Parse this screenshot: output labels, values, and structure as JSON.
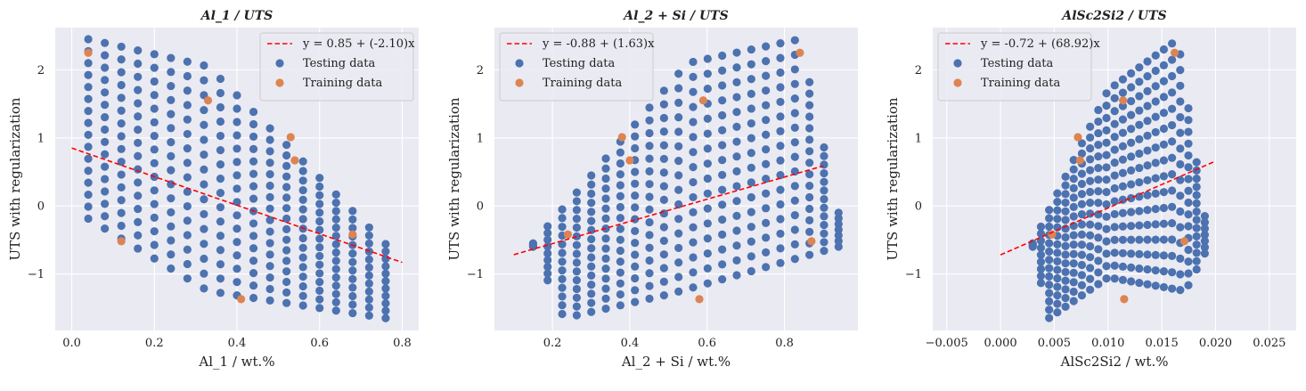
{
  "colors": {
    "background": "#eaeaf2",
    "grid": "#ffffff",
    "testing": "#4c72b0",
    "training": "#dd8452",
    "fit": "#ff0000"
  },
  "chart_data": [
    {
      "type": "scatter",
      "title": "Al_1 / UTS",
      "xlabel": "Al_1 / wt.%",
      "ylabel": "UTS with regularization",
      "xlim": [
        -0.04,
        0.84
      ],
      "ylim": [
        -1.83,
        2.62
      ],
      "xticks": [
        0.0,
        0.2,
        0.4,
        0.6,
        0.8
      ],
      "xtick_labels": [
        "0.0",
        "0.2",
        "0.4",
        "0.6",
        "0.8"
      ],
      "yticks": [
        -1,
        0,
        1,
        2
      ],
      "ytick_labels": [
        "−1",
        "0",
        "1",
        "2"
      ],
      "grid": true,
      "legend_position": "top-right",
      "legend": [
        "y = 0.85 + (-2.10)x",
        "Testing data",
        "Training data"
      ],
      "fit_line": {
        "intercept": 0.85,
        "slope": -2.1,
        "x_range": [
          0.0,
          0.8
        ]
      },
      "testing_cloud": {
        "x_range": [
          0.04,
          0.76
        ],
        "columns": 19,
        "upper": [
          [
            0.04,
            2.45
          ],
          [
            0.33,
            2.05
          ],
          [
            0.76,
            -0.56
          ]
        ],
        "lower": [
          [
            0.03,
            -0.15
          ],
          [
            0.33,
            -1.25
          ],
          [
            0.76,
            -1.65
          ]
        ],
        "rows": 16
      },
      "training": {
        "x": [
          0.04,
          0.12,
          0.33,
          0.41,
          0.53,
          0.54,
          0.68
        ],
        "y": [
          2.25,
          -0.52,
          1.55,
          -1.37,
          1.01,
          0.67,
          -0.42
        ]
      }
    },
    {
      "type": "scatter",
      "title": "Al_2 + Si / UTS",
      "xlabel": "Al_2 + Si / wt.%",
      "ylabel": "UTS with regularization",
      "xlim": [
        0.05,
        0.99
      ],
      "ylim": [
        -1.83,
        2.62
      ],
      "xticks": [
        0.2,
        0.4,
        0.6,
        0.8
      ],
      "xtick_labels": [
        "0.2",
        "0.4",
        "0.6",
        "0.8"
      ],
      "yticks": [
        -1,
        0,
        1,
        2
      ],
      "ytick_labels": [
        "−1",
        "0",
        "1",
        "2"
      ],
      "grid": true,
      "legend_position": "top-left",
      "legend": [
        "y = -0.88 + (1.63)x",
        "Testing data",
        "Training data"
      ],
      "fit_line": {
        "intercept": -0.88,
        "slope": 1.63,
        "x_range": [
          0.1,
          0.9
        ]
      },
      "testing_cloud": {
        "x_range": [
          0.15,
          0.94
        ],
        "columns": 22,
        "upper": [
          [
            0.15,
            -0.55
          ],
          [
            0.55,
            2.1
          ],
          [
            0.84,
            2.45
          ],
          [
            0.94,
            -0.1
          ]
        ],
        "lower": [
          [
            0.15,
            -0.6
          ],
          [
            0.23,
            -1.65
          ],
          [
            0.5,
            -1.3
          ],
          [
            0.94,
            -0.6
          ]
        ],
        "rows": 16
      },
      "training": {
        "x": [
          0.24,
          0.38,
          0.4,
          0.59,
          0.58,
          0.84,
          0.87
        ],
        "y": [
          -0.42,
          1.01,
          0.67,
          1.55,
          -1.37,
          2.25,
          -0.52
        ]
      }
    },
    {
      "type": "scatter",
      "title": "AlSc2Si2 / UTS",
      "xlabel": "AlSc2Si2 / wt.%",
      "ylabel": "UTS with regularization",
      "xlim": [
        -0.0063,
        0.0275
      ],
      "ylim": [
        -1.83,
        2.62
      ],
      "xticks": [
        -0.005,
        0.0,
        0.005,
        0.01,
        0.015,
        0.02,
        0.025
      ],
      "xtick_labels": [
        "−0.005",
        "0.000",
        "0.005",
        "0.010",
        "0.015",
        "0.020",
        "0.025"
      ],
      "yticks": [
        -1,
        0,
        1,
        2
      ],
      "ytick_labels": [
        "−1",
        "0",
        "1",
        "2"
      ],
      "grid": true,
      "legend_position": "top-left",
      "legend": [
        "y = -0.72 + (68.92)x",
        "Testing data",
        "Training data"
      ],
      "fit_line": {
        "intercept": -0.72,
        "slope": 68.92,
        "x_range": [
          0.0,
          0.02
        ]
      },
      "testing_cloud": {
        "x_range": [
          0.003,
          0.019
        ],
        "columns": 22,
        "upper": [
          [
            0.003,
            -0.55
          ],
          [
            0.01,
            1.7
          ],
          [
            0.0165,
            2.45
          ],
          [
            0.019,
            -0.15
          ]
        ],
        "lower": [
          [
            0.003,
            -0.6
          ],
          [
            0.0045,
            -1.65
          ],
          [
            0.01,
            -1.05
          ],
          [
            0.0172,
            -1.25
          ],
          [
            0.019,
            -0.7
          ]
        ],
        "rows": 16
      },
      "training": {
        "x": [
          0.0048,
          0.0072,
          0.0074,
          0.0114,
          0.0115,
          0.0162,
          0.0171
        ],
        "y": [
          -0.42,
          1.01,
          0.67,
          1.55,
          -1.37,
          2.25,
          -0.52
        ]
      }
    }
  ]
}
